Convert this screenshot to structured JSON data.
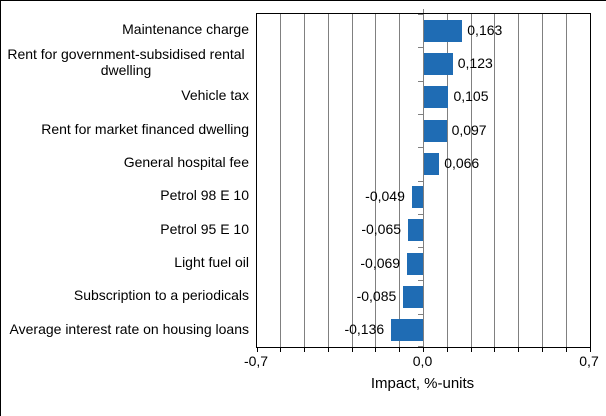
{
  "chart_data": {
    "type": "bar",
    "orientation": "horizontal",
    "categories": [
      "Maintenance charge",
      "Rent for government-subsidised rental dwelling",
      "Vehicle tax",
      "Rent for market financed dwelling",
      "General hospital fee",
      "Petrol 98 E 10",
      "Petrol 95 E 10",
      "Light fuel oil",
      "Subscription to a periodicals",
      "Average interest rate on housing loans"
    ],
    "values": [
      0.163,
      0.123,
      0.105,
      0.097,
      0.066,
      -0.049,
      -0.065,
      -0.069,
      -0.085,
      -0.136
    ],
    "value_labels": [
      "0,163",
      "0,123",
      "0,105",
      "0,097",
      "0,066",
      "-0,049",
      "-0,065",
      "-0,069",
      "-0,085",
      "-0,136"
    ],
    "xlabel": "Impact, %-units",
    "xlim": [
      -0.7,
      0.7
    ],
    "grid_step": 0.1,
    "x_tick_labels": [
      "-0,7",
      "0,0",
      "0,7"
    ],
    "x_tick_values": [
      -0.7,
      0.0,
      0.7
    ],
    "legend_position": "none",
    "grid": "vertical",
    "colors": {
      "bar": "#1f6cb4",
      "gridline": "#808080",
      "axis": "#000000",
      "text": "#000000",
      "background": "#ffffff"
    }
  }
}
